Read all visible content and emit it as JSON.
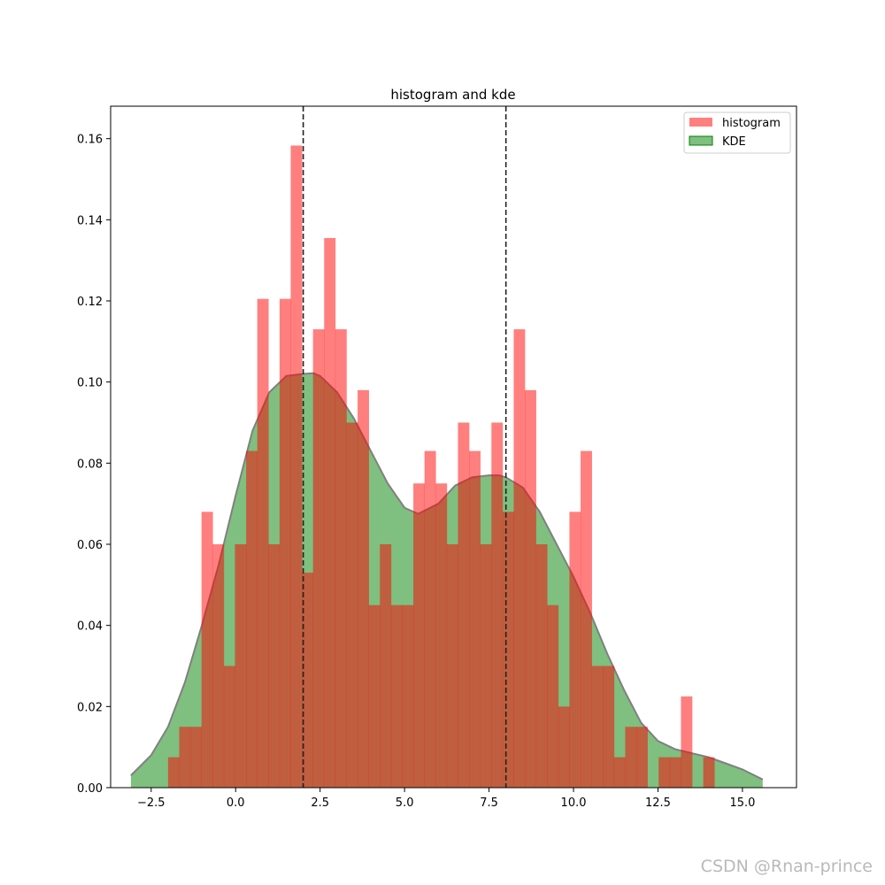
{
  "chart_data": {
    "type": "bar",
    "title": "histogram and kde",
    "xlabel": "",
    "ylabel": "",
    "xlim": [
      -3.7,
      16.6
    ],
    "ylim": [
      0,
      0.168
    ],
    "xticks": [
      -2.5,
      0.0,
      2.5,
      5.0,
      7.5,
      10.0,
      12.5,
      15.0
    ],
    "xtick_labels": [
      "−2.5",
      "0.0",
      "2.5",
      "5.0",
      "7.5",
      "10.0",
      "12.5",
      "15.0"
    ],
    "yticks": [
      0.0,
      0.02,
      0.04,
      0.06,
      0.08,
      0.1,
      0.12,
      0.14,
      0.16
    ],
    "ytick_labels": [
      "0.00",
      "0.02",
      "0.04",
      "0.06",
      "0.08",
      "0.10",
      "0.12",
      "0.14",
      "0.16"
    ],
    "grid": false,
    "legend_position": "top-right",
    "vlines": [
      2.0,
      8.0
    ],
    "series": [
      {
        "name": "histogram",
        "color": "#ff0000",
        "opacity": 0.5,
        "bin_start": -2.0,
        "bin_width": 0.33,
        "values": [
          0.0075,
          0.015,
          0.015,
          0.068,
          0.06,
          0.03,
          0.06,
          0.083,
          0.1205,
          0.06,
          0.1205,
          0.1583,
          0.053,
          0.113,
          0.1355,
          0.113,
          0.09,
          0.098,
          0.045,
          0.06,
          0.045,
          0.045,
          0.075,
          0.083,
          0.075,
          0.06,
          0.09,
          0.083,
          0.06,
          0.09,
          0.068,
          0.113,
          0.098,
          0.06,
          0.045,
          0.02,
          0.068,
          0.083,
          0.03,
          0.03,
          0.0075,
          0.015,
          0.015,
          0.0,
          0.0075,
          0.0075,
          0.0225,
          0.0,
          0.0075
        ]
      },
      {
        "name": "KDE",
        "color": "#008000",
        "opacity": 0.5,
        "line_color": "#808080",
        "x": [
          -3.1,
          -2.5,
          -2.0,
          -1.5,
          -1.0,
          -0.5,
          0.0,
          0.5,
          1.0,
          1.5,
          2.0,
          2.3,
          2.5,
          3.0,
          3.5,
          4.0,
          4.5,
          5.0,
          5.4,
          6.0,
          6.5,
          7.0,
          7.5,
          7.8,
          8.0,
          8.5,
          9.0,
          9.5,
          10.0,
          10.5,
          11.0,
          11.5,
          12.0,
          12.5,
          13.0,
          13.5,
          14.0,
          14.5,
          15.0,
          15.6
        ],
        "y": [
          0.003,
          0.008,
          0.015,
          0.026,
          0.04,
          0.055,
          0.072,
          0.088,
          0.0975,
          0.1015,
          0.102,
          0.1022,
          0.1015,
          0.0975,
          0.091,
          0.083,
          0.075,
          0.069,
          0.0675,
          0.07,
          0.0745,
          0.0765,
          0.077,
          0.077,
          0.0765,
          0.074,
          0.068,
          0.06,
          0.052,
          0.043,
          0.033,
          0.024,
          0.016,
          0.0115,
          0.0095,
          0.0085,
          0.0075,
          0.006,
          0.0045,
          0.002
        ]
      }
    ]
  },
  "watermark": "CSDN @Rnan-prince"
}
